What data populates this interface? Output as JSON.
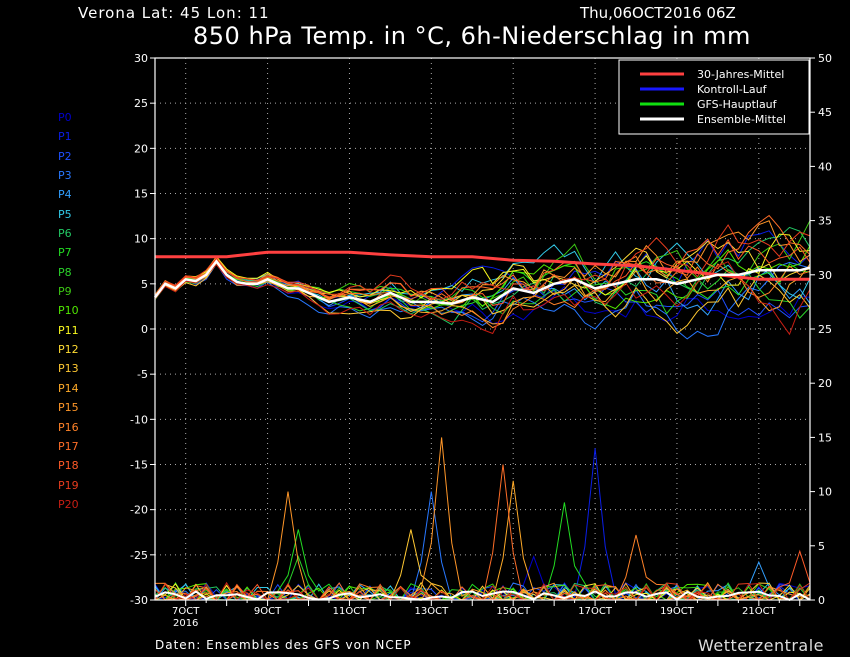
{
  "header": {
    "location": "Verona   Lat: 45 Lon: 11",
    "run": "Thu,06OCT2016 06Z",
    "title": "850 hPa Temp. in °C, 6h-Niederschlag in mm"
  },
  "footer": {
    "source": "Daten: Ensembles des GFS von NCEP",
    "brand": "Wetterzentrale"
  },
  "members": [
    {
      "label": "P0",
      "color": "#0000cc"
    },
    {
      "label": "P1",
      "color": "#0a1ee6"
    },
    {
      "label": "P2",
      "color": "#1e50ff"
    },
    {
      "label": "P3",
      "color": "#2878ff"
    },
    {
      "label": "P4",
      "color": "#32a0ff"
    },
    {
      "label": "P5",
      "color": "#32c8e6"
    },
    {
      "label": "P6",
      "color": "#22c864"
    },
    {
      "label": "P7",
      "color": "#22dc22"
    },
    {
      "label": "P8",
      "color": "#2ad22a"
    },
    {
      "label": "P9",
      "color": "#3cc814"
    },
    {
      "label": "P10",
      "color": "#50e600"
    },
    {
      "label": "P11",
      "color": "#fafa1e"
    },
    {
      "label": "P12",
      "color": "#ffdc32"
    },
    {
      "label": "P13",
      "color": "#ffc832"
    },
    {
      "label": "P14",
      "color": "#ffaa28"
    },
    {
      "label": "P15",
      "color": "#ff9628"
    },
    {
      "label": "P16",
      "color": "#ff8228"
    },
    {
      "label": "P17",
      "color": "#ff6e28"
    },
    {
      "label": "P18",
      "color": "#ff5a28"
    },
    {
      "label": "P19",
      "color": "#e63c1e"
    },
    {
      "label": "P20",
      "color": "#c81e14"
    }
  ],
  "chart_data": {
    "type": "line",
    "title": "850 hPa Temp. in °C, 6h-Niederschlag in mm",
    "x_axis": {
      "range_days": [
        6.25,
        22.25
      ],
      "ticks": [
        {
          "day": 7,
          "label": "7OCT",
          "sub": "2016"
        },
        {
          "day": 9,
          "label": "9OCT"
        },
        {
          "day": 11,
          "label": "11OCT"
        },
        {
          "day": 13,
          "label": "13OCT"
        },
        {
          "day": 15,
          "label": "15OCT"
        },
        {
          "day": 17,
          "label": "17OCT"
        },
        {
          "day": 19,
          "label": "19OCT"
        },
        {
          "day": 21,
          "label": "21OCT"
        }
      ]
    },
    "y_left": {
      "range": [
        -30,
        30
      ],
      "ticks": [
        "30",
        "25",
        "20",
        "15",
        "10",
        "5",
        "0",
        "-5",
        "-10",
        "-15",
        "-20",
        "-25",
        "-30"
      ]
    },
    "y_right": {
      "range": [
        0,
        50
      ],
      "ticks": [
        "50",
        "45",
        "40",
        "35",
        "30",
        "25",
        "20",
        "15",
        "10",
        "5",
        "0"
      ]
    },
    "grid": true,
    "legend_position": "top-right",
    "legend": [
      {
        "name": "30-Jahres-Mittel",
        "color": "#ff4040"
      },
      {
        "name": "Kontroll-Lauf",
        "color": "#1818ff"
      },
      {
        "name": "GFS-Hauptlauf",
        "color": "#10e010"
      },
      {
        "name": "Ensemble-Mittel",
        "color": "#ffffff"
      }
    ],
    "temp_points": [
      [
        6.25,
        3.5
      ],
      [
        6.5,
        5
      ],
      [
        6.75,
        4.5
      ],
      [
        7,
        5.5
      ],
      [
        7.25,
        5.3
      ],
      [
        7.5,
        6
      ],
      [
        7.75,
        7.5
      ],
      [
        8,
        6
      ],
      [
        8.25,
        5.2
      ],
      [
        8.5,
        5
      ],
      [
        8.75,
        5
      ],
      [
        9,
        5.5
      ],
      [
        9.25,
        5
      ],
      [
        9.5,
        4.5
      ],
      [
        9.75,
        4.5
      ],
      [
        10,
        4
      ],
      [
        10.5,
        3
      ],
      [
        11,
        3.5
      ],
      [
        11.5,
        3
      ],
      [
        12,
        4
      ],
      [
        12.5,
        3
      ],
      [
        13,
        3
      ],
      [
        13.5,
        2.8
      ],
      [
        14,
        3.5
      ],
      [
        14.5,
        3
      ],
      [
        15,
        4.5
      ],
      [
        15.5,
        4
      ],
      [
        16,
        5
      ],
      [
        16.5,
        5.5
      ],
      [
        17,
        4.5
      ],
      [
        17.5,
        5
      ],
      [
        18,
        5.5
      ],
      [
        18.5,
        5.5
      ],
      [
        19,
        5
      ],
      [
        19.5,
        5.5
      ],
      [
        20,
        6
      ],
      [
        20.5,
        6
      ],
      [
        21,
        6.5
      ],
      [
        21.5,
        6.5
      ],
      [
        22,
        6.5
      ],
      [
        22.25,
        6.8
      ]
    ],
    "spread": [
      [
        6.25,
        0.5
      ],
      [
        8,
        0.8
      ],
      [
        9,
        1
      ],
      [
        10,
        1.5
      ],
      [
        11,
        2
      ],
      [
        12,
        2.5
      ],
      [
        13,
        3
      ],
      [
        14,
        4
      ],
      [
        15,
        4.5
      ],
      [
        16,
        5
      ],
      [
        17,
        5.5
      ],
      [
        18,
        6
      ],
      [
        19,
        6.5
      ],
      [
        20,
        7
      ],
      [
        21,
        7.5
      ],
      [
        22.25,
        8
      ]
    ],
    "climatology": [
      [
        6.25,
        8
      ],
      [
        7,
        8
      ],
      [
        8,
        8
      ],
      [
        9,
        8.5
      ],
      [
        10,
        8.5
      ],
      [
        11,
        8.5
      ],
      [
        12,
        8.2
      ],
      [
        13,
        8
      ],
      [
        14,
        8
      ],
      [
        15,
        7.6
      ],
      [
        16,
        7.5
      ],
      [
        17,
        7.2
      ],
      [
        18,
        7
      ],
      [
        19,
        6.5
      ],
      [
        20,
        6
      ],
      [
        21,
        5.5
      ],
      [
        22.25,
        5.5
      ]
    ],
    "precip_spikes": [
      {
        "member": 15,
        "day": 9.5,
        "mm": 10
      },
      {
        "member": 7,
        "day": 9.85,
        "mm": 6.5
      },
      {
        "member": 8,
        "day": 9.65,
        "mm": 4
      },
      {
        "member": 3,
        "day": 12.9,
        "mm": 10
      },
      {
        "member": 13,
        "day": 12.4,
        "mm": 6.5
      },
      {
        "member": 15,
        "day": 13.35,
        "mm": 15
      },
      {
        "member": 17,
        "day": 14.8,
        "mm": 12.5
      },
      {
        "member": 14,
        "day": 15,
        "mm": 11
      },
      {
        "member": 0,
        "day": 15.6,
        "mm": 4
      },
      {
        "member": 7,
        "day": 16.3,
        "mm": 9
      },
      {
        "member": 1,
        "day": 17.1,
        "mm": 14
      },
      {
        "member": 16,
        "day": 18.05,
        "mm": 6
      },
      {
        "member": 4,
        "day": 21.1,
        "mm": 3.5
      },
      {
        "member": 18,
        "day": 22.1,
        "mm": 4.5
      }
    ]
  }
}
